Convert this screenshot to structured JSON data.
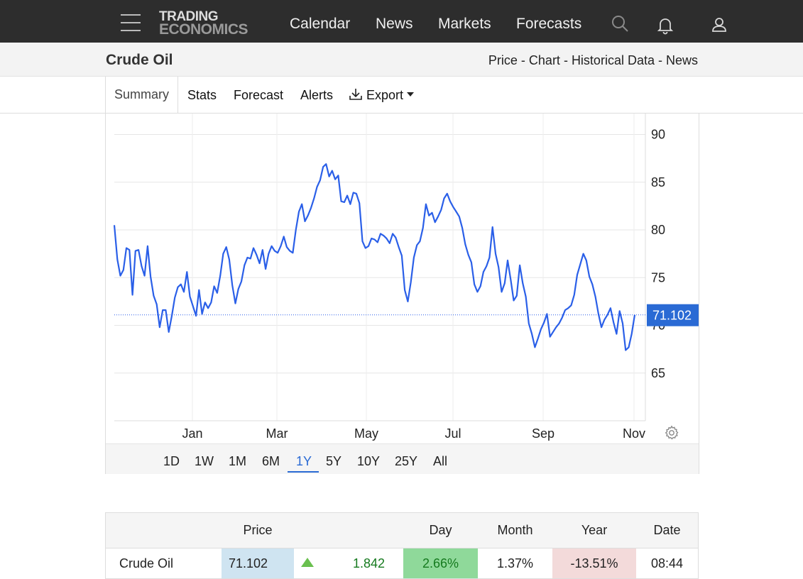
{
  "header": {
    "logo_line1": "TRADING",
    "logo_line2": "ECONOMICS",
    "nav": [
      "Calendar",
      "News",
      "Markets",
      "Forecasts"
    ]
  },
  "subheader": {
    "title": "Crude Oil",
    "links": [
      "Price",
      "Chart",
      "Historical Data",
      "News"
    ],
    "separator": " - "
  },
  "tabs": [
    "Summary",
    "Stats",
    "Forecast",
    "Alerts",
    "Export"
  ],
  "ranges": [
    "1D",
    "1W",
    "1M",
    "6M",
    "1Y",
    "5Y",
    "10Y",
    "25Y",
    "All"
  ],
  "active_range": "1Y",
  "colors": {
    "line": "#2a5fe8",
    "accent": "#2a6ad4",
    "topbar": "#2d2d2d",
    "price_cell": "#cfe4f1",
    "day_up": "#8fd99a",
    "year_down": "#f3dada"
  },
  "chart_data": {
    "type": "line",
    "title": "",
    "xlabel": "",
    "ylabel": "",
    "x_ticks": [
      "Jan",
      "Mar",
      "May",
      "Jul",
      "Sep",
      "Nov"
    ],
    "y_ticks": [
      65,
      70,
      75,
      80,
      85,
      90
    ],
    "ylim": [
      60,
      91
    ],
    "last_value_label": "71.102",
    "last_value": 71.1,
    "grid": true,
    "series": [
      {
        "values": [
          80.5,
          76.9,
          75.2,
          75.8,
          78.1,
          77.9,
          73.2,
          77.8,
          77.9,
          76.2,
          75.2,
          78.3,
          75.1,
          73.1,
          72.2,
          69.8,
          71.6,
          71.6,
          69.3,
          71.0,
          72.9,
          74.0,
          74.3,
          73.5,
          75.6,
          73.0,
          72.0,
          71.0,
          73.7,
          71.2,
          72.4,
          71.8,
          72.4,
          74.1,
          73.4,
          75.2,
          77.5,
          78.2,
          76.9,
          74.2,
          72.3,
          73.8,
          74.6,
          76.3,
          77.1,
          77.0,
          78.1,
          77.4,
          76.5,
          77.9,
          75.9,
          77.5,
          78.3,
          77.8,
          77.6,
          78.3,
          79.3,
          78.2,
          77.8,
          77.6,
          80.0,
          81.9,
          82.7,
          80.9,
          81.5,
          82.3,
          83.3,
          84.5,
          85.2,
          86.6,
          86.9,
          85.6,
          86.2,
          85.3,
          85.7,
          83.0,
          82.9,
          83.6,
          82.7,
          83.9,
          83.8,
          82.8,
          78.8,
          78.1,
          78.3,
          79.1,
          79.0,
          78.7,
          79.6,
          79.4,
          79.1,
          78.6,
          79.6,
          79.2,
          78.2,
          77.3,
          73.7,
          72.5,
          74.5,
          77.1,
          78.4,
          78.8,
          80.2,
          82.7,
          81.5,
          81.8,
          80.8,
          81.4,
          82.1,
          83.3,
          83.8,
          83.0,
          82.4,
          81.9,
          81.4,
          80.2,
          78.5,
          77.4,
          76.6,
          74.3,
          73.5,
          74.1,
          75.6,
          76.2,
          77.1,
          80.3,
          77.5,
          76.1,
          73.5,
          74.4,
          76.8,
          74.8,
          72.6,
          73.1,
          76.3,
          74.4,
          73.0,
          70.2,
          69.1,
          67.7,
          68.6,
          69.6,
          70.3,
          71.2,
          68.8,
          69.3,
          69.8,
          70.2,
          70.8,
          71.6,
          71.8,
          72.1,
          73.2,
          75.3,
          76.4,
          77.5,
          76.8,
          75.1,
          74.3,
          73.0,
          71.2,
          69.8,
          70.6,
          71.1,
          71.8,
          70.3,
          69.1,
          71.5,
          70.2,
          67.4,
          67.7,
          69.1,
          71.1
        ]
      }
    ]
  },
  "table": {
    "headers": [
      "",
      "Price",
      "",
      "",
      "Day",
      "Month",
      "Year",
      "Date"
    ],
    "rows": [
      {
        "name": "Crude Oil",
        "price": "71.102",
        "change": "1.842",
        "day": "2.66%",
        "month": "1.37%",
        "year": "-13.51%",
        "date": "08:44"
      }
    ]
  }
}
